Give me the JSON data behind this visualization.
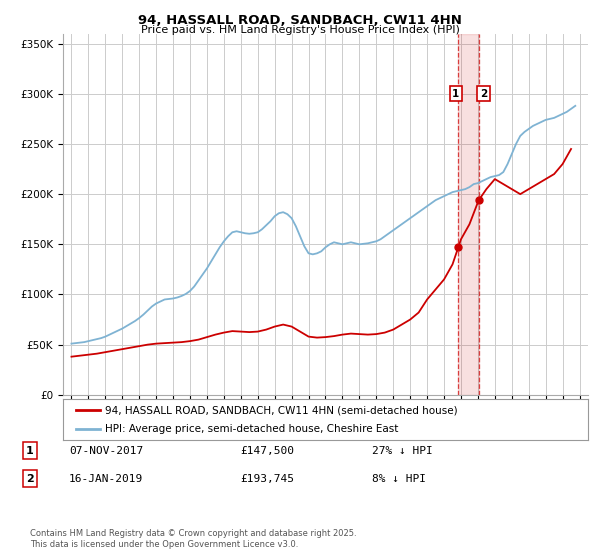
{
  "title": "94, HASSALL ROAD, SANDBACH, CW11 4HN",
  "subtitle": "Price paid vs. HM Land Registry's House Price Index (HPI)",
  "legend_label_red": "94, HASSALL ROAD, SANDBACH, CW11 4HN (semi-detached house)",
  "legend_label_blue": "HPI: Average price, semi-detached house, Cheshire East",
  "red_color": "#cc0000",
  "blue_color": "#7fb3d3",
  "vline_color": "#cc0000",
  "marker1_x": 2017.85,
  "marker1_y": 147500,
  "marker2_x": 2019.04,
  "marker2_y": 193745,
  "table_row1": [
    "1",
    "07-NOV-2017",
    "£147,500",
    "27% ↓ HPI"
  ],
  "table_row2": [
    "2",
    "16-JAN-2019",
    "£193,745",
    "8% ↓ HPI"
  ],
  "footer": "Contains HM Land Registry data © Crown copyright and database right 2025.\nThis data is licensed under the Open Government Licence v3.0.",
  "xlim": [
    1994.5,
    2025.5
  ],
  "ylim": [
    0,
    360000
  ],
  "yticks": [
    0,
    50000,
    100000,
    150000,
    200000,
    250000,
    300000,
    350000
  ],
  "ytick_labels": [
    "£0",
    "£50K",
    "£100K",
    "£150K",
    "£200K",
    "£250K",
    "£300K",
    "£350K"
  ],
  "xticks": [
    1995,
    1996,
    1997,
    1998,
    1999,
    2000,
    2001,
    2002,
    2003,
    2004,
    2005,
    2006,
    2007,
    2008,
    2009,
    2010,
    2011,
    2012,
    2013,
    2014,
    2015,
    2016,
    2017,
    2018,
    2019,
    2020,
    2021,
    2022,
    2023,
    2024,
    2025
  ],
  "background_color": "#ffffff",
  "grid_color": "#cccccc",
  "hpi_data_x": [
    1995.0,
    1995.25,
    1995.5,
    1995.75,
    1996.0,
    1996.25,
    1996.5,
    1996.75,
    1997.0,
    1997.25,
    1997.5,
    1997.75,
    1998.0,
    1998.25,
    1998.5,
    1998.75,
    1999.0,
    1999.25,
    1999.5,
    1999.75,
    2000.0,
    2000.25,
    2000.5,
    2000.75,
    2001.0,
    2001.25,
    2001.5,
    2001.75,
    2002.0,
    2002.25,
    2002.5,
    2002.75,
    2003.0,
    2003.25,
    2003.5,
    2003.75,
    2004.0,
    2004.25,
    2004.5,
    2004.75,
    2005.0,
    2005.25,
    2005.5,
    2005.75,
    2006.0,
    2006.25,
    2006.5,
    2006.75,
    2007.0,
    2007.25,
    2007.5,
    2007.75,
    2008.0,
    2008.25,
    2008.5,
    2008.75,
    2009.0,
    2009.25,
    2009.5,
    2009.75,
    2010.0,
    2010.25,
    2010.5,
    2010.75,
    2011.0,
    2011.25,
    2011.5,
    2011.75,
    2012.0,
    2012.25,
    2012.5,
    2012.75,
    2013.0,
    2013.25,
    2013.5,
    2013.75,
    2014.0,
    2014.25,
    2014.5,
    2014.75,
    2015.0,
    2015.25,
    2015.5,
    2015.75,
    2016.0,
    2016.25,
    2016.5,
    2016.75,
    2017.0,
    2017.25,
    2017.5,
    2017.75,
    2018.0,
    2018.25,
    2018.5,
    2018.75,
    2019.0,
    2019.25,
    2019.5,
    2019.75,
    2020.0,
    2020.25,
    2020.5,
    2020.75,
    2021.0,
    2021.25,
    2021.5,
    2021.75,
    2022.0,
    2022.25,
    2022.5,
    2022.75,
    2023.0,
    2023.25,
    2023.5,
    2023.75,
    2024.0,
    2024.25,
    2024.5,
    2024.75
  ],
  "hpi_data_y": [
    51000,
    51500,
    52000,
    52500,
    53500,
    54500,
    55500,
    56500,
    58000,
    60000,
    62000,
    64000,
    66000,
    68500,
    71000,
    73500,
    76500,
    80000,
    84000,
    88000,
    91000,
    93000,
    95000,
    95500,
    96000,
    97000,
    98500,
    100500,
    103500,
    108000,
    114000,
    120000,
    126000,
    133000,
    140000,
    147000,
    153000,
    158000,
    162000,
    163000,
    162000,
    161000,
    160500,
    161000,
    162000,
    165000,
    169000,
    173000,
    178000,
    181000,
    182000,
    180000,
    176000,
    168000,
    158000,
    148000,
    141000,
    140000,
    141000,
    143000,
    147000,
    150000,
    152000,
    151000,
    150000,
    151000,
    152000,
    151000,
    150000,
    150500,
    151000,
    152000,
    153000,
    155000,
    158000,
    161000,
    164000,
    167000,
    170000,
    173000,
    176000,
    179000,
    182000,
    185000,
    188000,
    191000,
    194000,
    196000,
    198000,
    200000,
    202000,
    203000,
    204000,
    205000,
    207000,
    210000,
    211000,
    213000,
    215000,
    217000,
    218000,
    219000,
    222000,
    230000,
    240000,
    250000,
    258000,
    262000,
    265000,
    268000,
    270000,
    272000,
    274000,
    275000,
    276000,
    278000,
    280000,
    282000,
    285000,
    288000
  ],
  "red_data_x": [
    1995.0,
    1995.5,
    1996.0,
    1996.5,
    1997.0,
    1997.5,
    1998.0,
    1998.5,
    1999.0,
    1999.5,
    2000.0,
    2000.5,
    2001.0,
    2001.5,
    2002.0,
    2002.5,
    2003.0,
    2003.5,
    2004.0,
    2004.5,
    2005.0,
    2005.5,
    2006.0,
    2006.5,
    2007.0,
    2007.5,
    2008.0,
    2008.5,
    2009.0,
    2009.5,
    2010.0,
    2010.5,
    2011.0,
    2011.5,
    2012.0,
    2012.5,
    2013.0,
    2013.5,
    2014.0,
    2014.5,
    2015.0,
    2015.5,
    2016.0,
    2016.5,
    2017.0,
    2017.5,
    2017.85,
    2018.0,
    2018.5,
    2019.04,
    2019.5,
    2020.0,
    2020.5,
    2021.0,
    2021.5,
    2022.0,
    2022.5,
    2023.0,
    2023.5,
    2024.0,
    2024.5
  ],
  "red_data_y": [
    38000,
    39000,
    40000,
    41000,
    42500,
    44000,
    45500,
    47000,
    48500,
    50000,
    51000,
    51500,
    52000,
    52500,
    53500,
    55000,
    57500,
    60000,
    62000,
    63500,
    63000,
    62500,
    63000,
    65000,
    68000,
    70000,
    68000,
    63000,
    58000,
    57000,
    57500,
    58500,
    60000,
    61000,
    60500,
    60000,
    60500,
    62000,
    65000,
    70000,
    75000,
    82000,
    95000,
    105000,
    115000,
    130000,
    147500,
    155000,
    170000,
    193745,
    205000,
    215000,
    210000,
    205000,
    200000,
    205000,
    210000,
    215000,
    220000,
    230000,
    245000
  ]
}
